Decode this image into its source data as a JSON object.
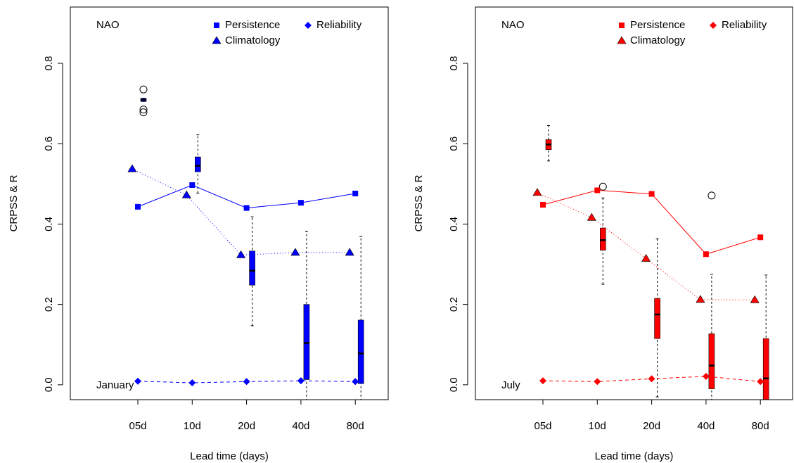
{
  "chart_data": [
    {
      "type": "boxplot",
      "title": "NAO",
      "annotation": "January",
      "ylabel": "CRPSS & R",
      "xlabel": "Lead time (days)",
      "categories": [
        "05d",
        "10d",
        "20d",
        "40d",
        "80d"
      ],
      "ylim": [
        -0.037,
        0.94
      ],
      "yticks": [
        {
          "value": 0,
          "label": "0.0"
        },
        0.2,
        0.4,
        0.6,
        0.8
      ],
      "color": "#0000ff",
      "series": [
        {
          "name": "Persistence",
          "marker": "square",
          "linestyle": "solid",
          "values": [
            0.443,
            0.497,
            0.44,
            0.453,
            0.476
          ]
        },
        {
          "name": "Reliability",
          "marker": "diamond",
          "linestyle": "dashed",
          "values": [
            0.009,
            0.005,
            0.008,
            0.01,
            0.008
          ]
        },
        {
          "name": "Climatology",
          "marker": "triangle",
          "linestyle": "dotted",
          "values": [
            0.537,
            0.472,
            0.323,
            0.329,
            0.329
          ]
        }
      ],
      "boxes": [
        {
          "low": 0.705,
          "q1": 0.705,
          "median": 0.709,
          "q3": 0.713,
          "high": 0.713,
          "outliers": [
            0.735,
            0.685,
            0.678
          ]
        },
        {
          "low": 0.477,
          "q1": 0.53,
          "median": 0.545,
          "q3": 0.567,
          "high": 0.622,
          "outliers": []
        },
        {
          "low": 0.147,
          "q1": 0.248,
          "median": 0.284,
          "q3": 0.333,
          "high": 0.418,
          "outliers": []
        },
        {
          "low": -0.04,
          "q1": 0.013,
          "median": 0.104,
          "q3": 0.2,
          "high": 0.382,
          "outliers": []
        },
        {
          "low": -0.04,
          "q1": 0.003,
          "median": 0.078,
          "q3": 0.161,
          "high": 0.369,
          "outliers": []
        }
      ]
    },
    {
      "type": "boxplot",
      "title": "NAO",
      "annotation": "July",
      "ylabel": "CRPSS & R",
      "xlabel": "Lead time (days)",
      "categories": [
        "05d",
        "10d",
        "20d",
        "40d",
        "80d"
      ],
      "ylim": [
        -0.037,
        0.94
      ],
      "yticks": [
        {
          "value": 0,
          "label": "0.0"
        },
        0.2,
        0.4,
        0.6,
        0.8
      ],
      "color": "#ff0000",
      "series": [
        {
          "name": "Persistence",
          "marker": "square",
          "linestyle": "solid",
          "values": [
            0.448,
            0.484,
            0.475,
            0.325,
            0.367
          ]
        },
        {
          "name": "Reliability",
          "marker": "diamond",
          "linestyle": "dashed",
          "values": [
            0.01,
            0.008,
            0.015,
            0.021,
            0.008
          ]
        },
        {
          "name": "Climatology",
          "marker": "triangle",
          "linestyle": "dotted",
          "values": [
            0.478,
            0.416,
            0.314,
            0.212,
            0.211
          ]
        }
      ],
      "boxes": [
        {
          "low": 0.557,
          "q1": 0.585,
          "median": 0.598,
          "q3": 0.61,
          "high": 0.645,
          "outliers": []
        },
        {
          "low": 0.25,
          "q1": 0.335,
          "median": 0.36,
          "q3": 0.39,
          "high": 0.465,
          "outliers": [
            0.493
          ]
        },
        {
          "low": -0.03,
          "q1": 0.115,
          "median": 0.175,
          "q3": 0.215,
          "high": 0.363,
          "outliers": []
        },
        {
          "low": -0.04,
          "q1": -0.01,
          "median": 0.048,
          "q3": 0.127,
          "high": 0.275,
          "outliers": [
            0.471
          ]
        },
        {
          "low": -0.04,
          "q1": -0.04,
          "median": 0.016,
          "q3": 0.115,
          "high": 0.273,
          "outliers": []
        }
      ]
    }
  ]
}
